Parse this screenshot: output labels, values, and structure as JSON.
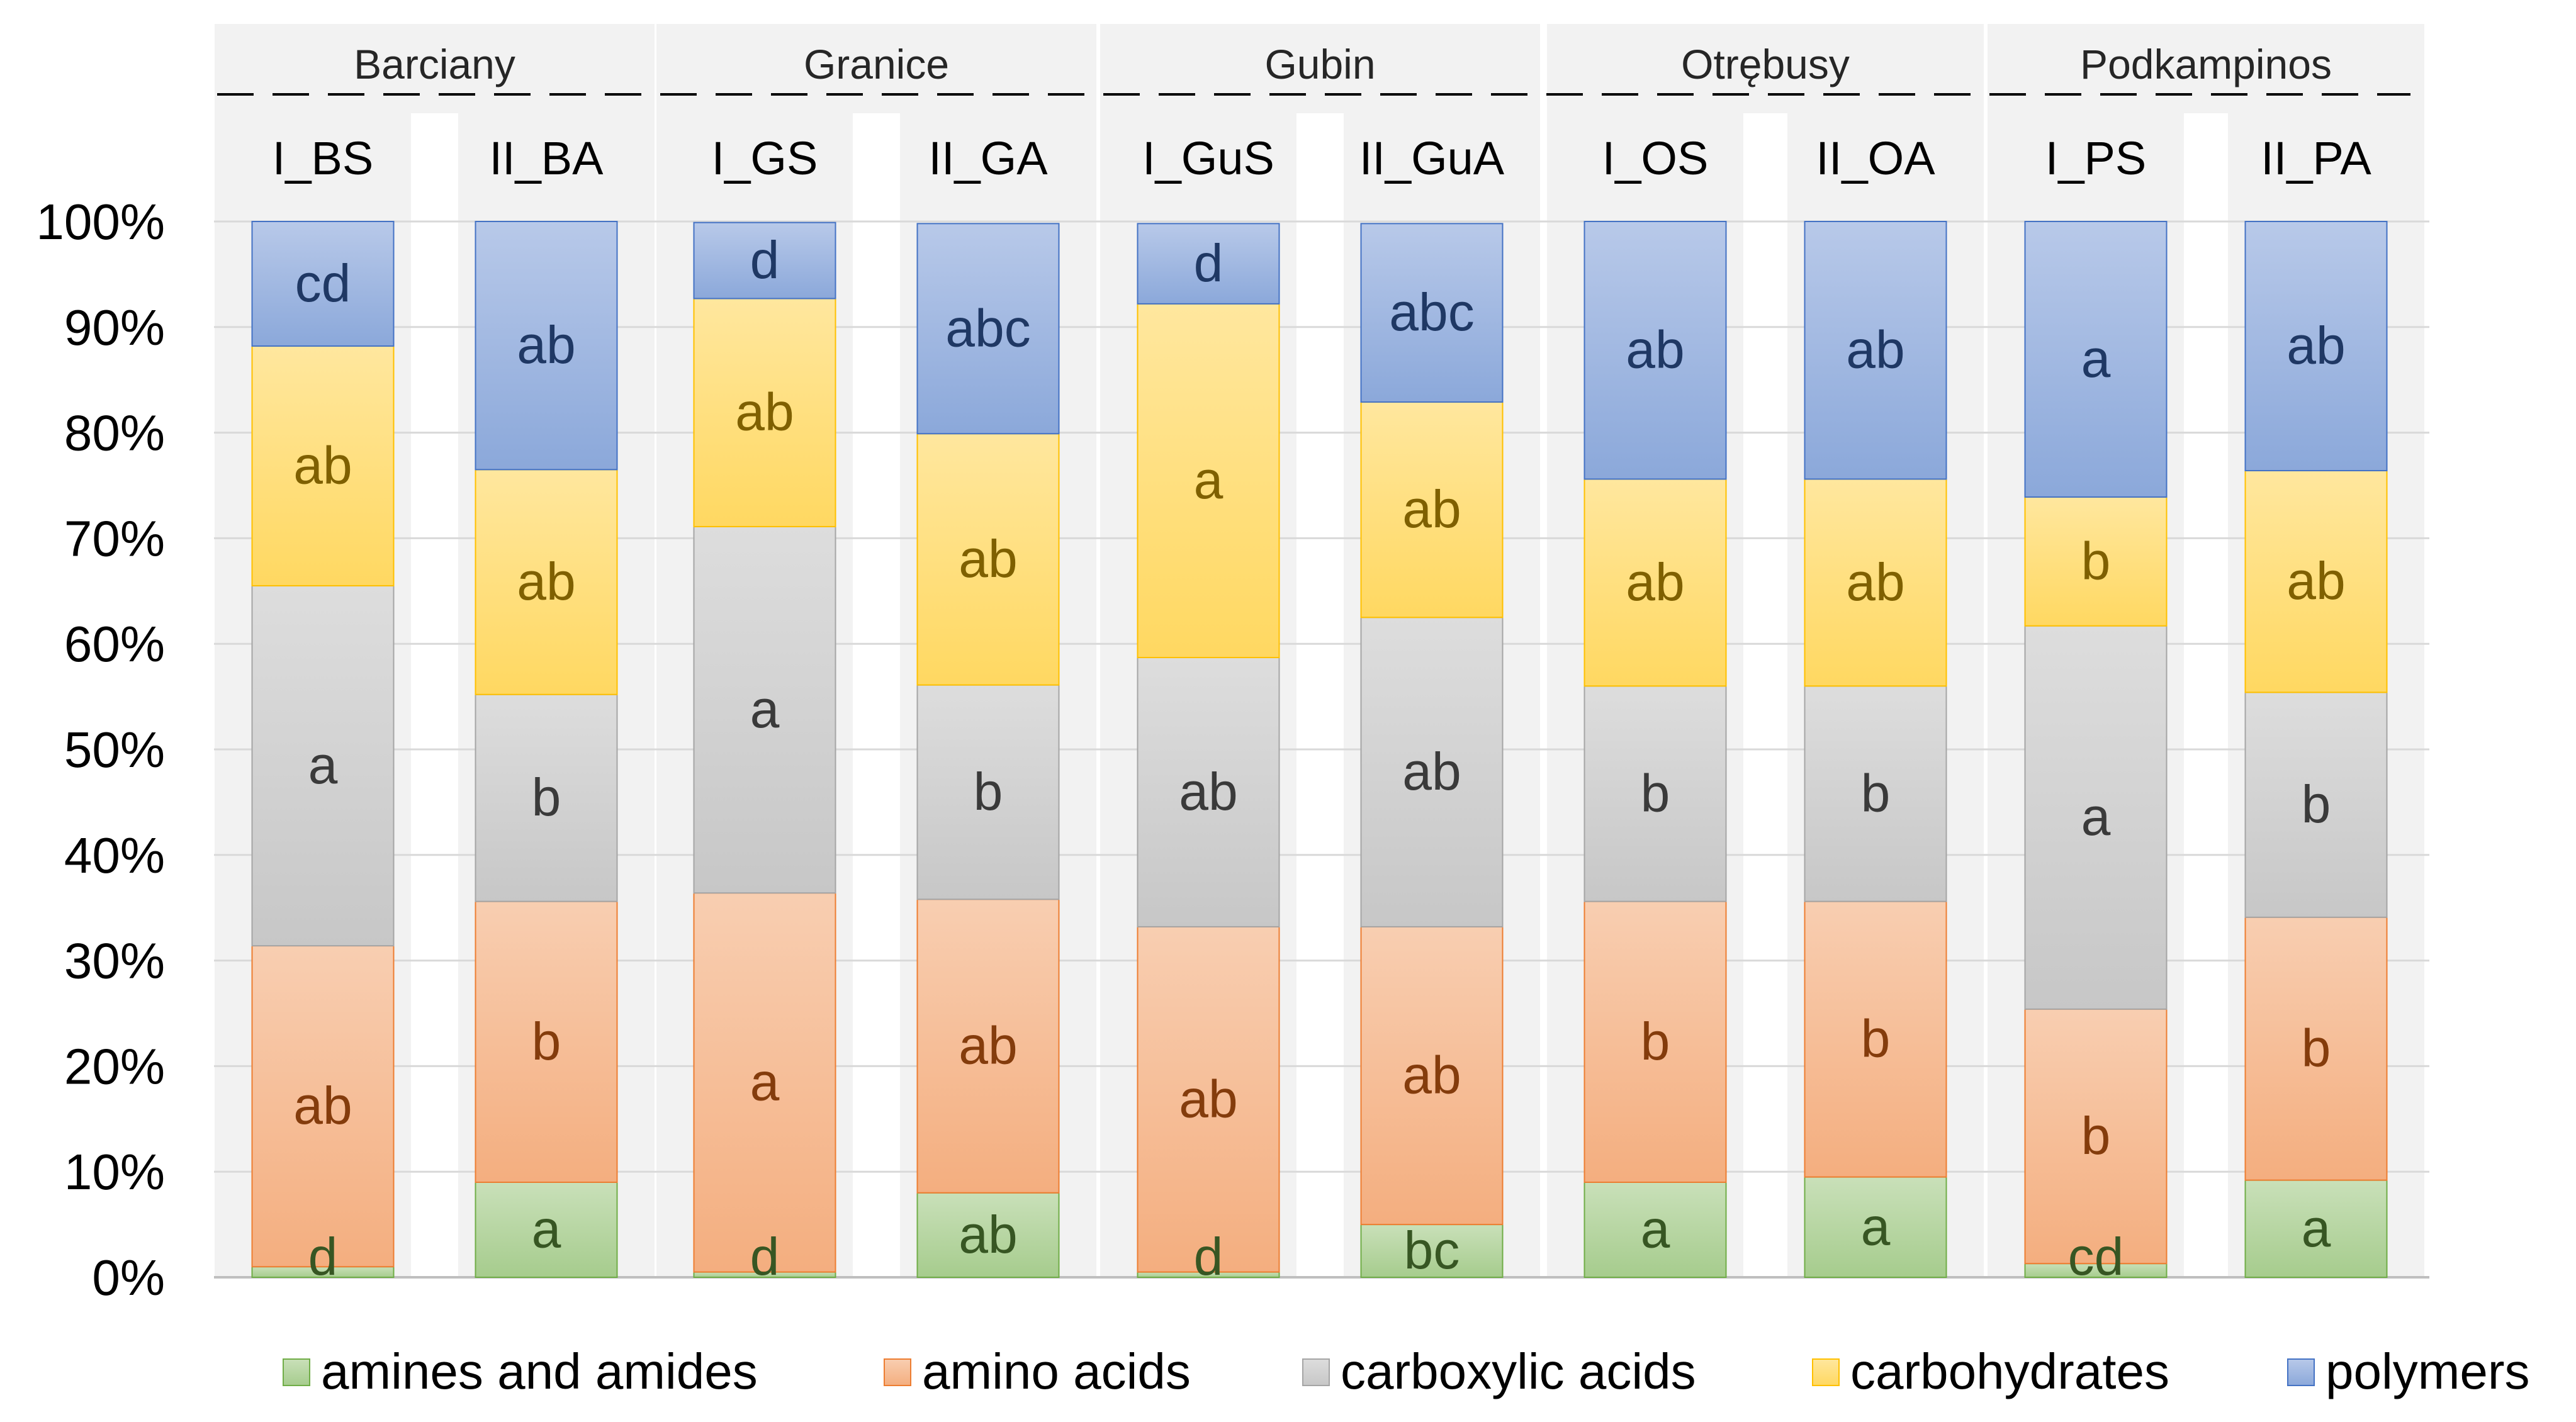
{
  "chart_data": {
    "type": "bar",
    "stacked": true,
    "percent": true,
    "ylim": [
      0,
      100
    ],
    "yticks": [
      "0%",
      "10%",
      "20%",
      "30%",
      "40%",
      "50%",
      "60%",
      "70%",
      "80%",
      "90%",
      "100%"
    ],
    "sites": [
      "Barciany",
      "Granice",
      "Gubin",
      "Otrębusy",
      "Podkampinos"
    ],
    "categories": [
      "I_BS",
      "II_BA",
      "I_GS",
      "II_GA",
      "I_GuS",
      "II_GuA",
      "I_OS",
      "II_OA",
      "I_PS",
      "II_PA"
    ],
    "series": [
      {
        "name": "amines and amides",
        "color": "#70ad47",
        "values": [
          1.0,
          9.0,
          0.5,
          8.0,
          0.5,
          5.0,
          9.0,
          9.5,
          1.3,
          9.2
        ],
        "letters": [
          "d",
          "a",
          "d",
          "ab",
          "d",
          "bc",
          "a",
          "a",
          "cd",
          "a"
        ]
      },
      {
        "name": "amino acids",
        "color": "#ed7d31",
        "values": [
          30.4,
          26.6,
          35.9,
          27.8,
          32.7,
          28.2,
          26.6,
          26.1,
          24.1,
          24.9
        ],
        "letters": [
          "ab",
          "b",
          "a",
          "ab",
          "ab",
          "ab",
          "b",
          "b",
          "b",
          "b"
        ]
      },
      {
        "name": "carboxylic acids",
        "color": "#a5a5a5",
        "values": [
          34.1,
          19.6,
          34.7,
          20.3,
          25.5,
          29.3,
          20.4,
          20.4,
          36.3,
          21.3
        ],
        "letters": [
          "a",
          "b",
          "a",
          "b",
          "ab",
          "ab",
          "b",
          "b",
          "a",
          "b"
        ]
      },
      {
        "name": "carbohydrates",
        "color": "#ffc000",
        "values": [
          22.7,
          21.3,
          21.6,
          23.8,
          33.5,
          20.4,
          19.6,
          19.6,
          12.2,
          21.0
        ],
        "letters": [
          "ab",
          "ab",
          "ab",
          "ab",
          "a",
          "ab",
          "ab",
          "ab",
          "b",
          "ab"
        ]
      },
      {
        "name": "polymers",
        "color": "#4472c4",
        "values": [
          11.8,
          23.5,
          7.2,
          19.9,
          7.6,
          16.9,
          24.4,
          24.4,
          26.1,
          23.6
        ],
        "letters": [
          "cd",
          "ab",
          "d",
          "abc",
          "d",
          "abc",
          "ab",
          "ab",
          "a",
          "ab"
        ]
      }
    ]
  }
}
